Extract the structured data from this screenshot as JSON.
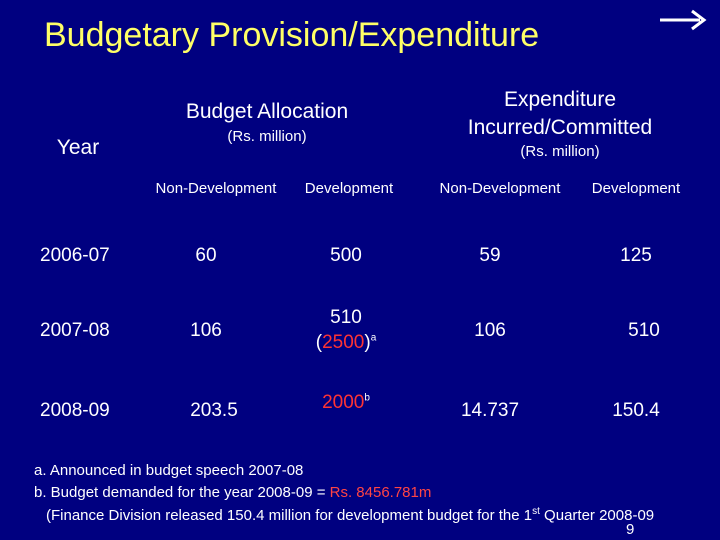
{
  "title": "Budgetary Provision/Expenditure",
  "header": {
    "year": "Year",
    "budget_allocation": "Budget Allocation",
    "budget_unit": "(Rs. million)",
    "expenditure_line1": "Expenditure",
    "expenditure_line2": "Incurred/Committed",
    "expenditure_unit": "(Rs. million)",
    "cols": [
      "Non-Development",
      "Development",
      "Non-Development",
      "Development"
    ]
  },
  "rows": [
    {
      "year": "2006-07",
      "ba_nondev": "60",
      "ba_dev": "500",
      "ex_nondev": "59",
      "ex_dev": "125"
    },
    {
      "year": "2007-08",
      "ba_nondev": "106",
      "ba_dev": "510",
      "ba_dev_extra_open": "(",
      "ba_dev_extra_value": "2500",
      "ba_dev_extra_close": ")",
      "ba_dev_extra_mark": "a",
      "ex_nondev": "106",
      "ex_dev": "510"
    },
    {
      "year": "2008-09",
      "ba_nondev": "203.5",
      "ba_dev": "2000",
      "ba_dev_mark": "b",
      "ex_nondev": "14.737",
      "ex_dev": "150.4"
    }
  ],
  "notes": {
    "a": "a.  Announced in budget speech 2007-08",
    "b_prefix": "b. Budget demanded for the year 2008-09 = ",
    "b_value": "Rs. 8456.781m",
    "c_prefix": "(Finance Division released 150.4 million for development budget for the 1",
    "c_sup": "st",
    "c_suffix": " Quarter 2008-09"
  },
  "page_number": "9",
  "colors": {
    "background": "#000080",
    "title": "#ffff66",
    "highlight": "#ff3333"
  },
  "icons": {
    "nav": "right-arrow-icon"
  }
}
